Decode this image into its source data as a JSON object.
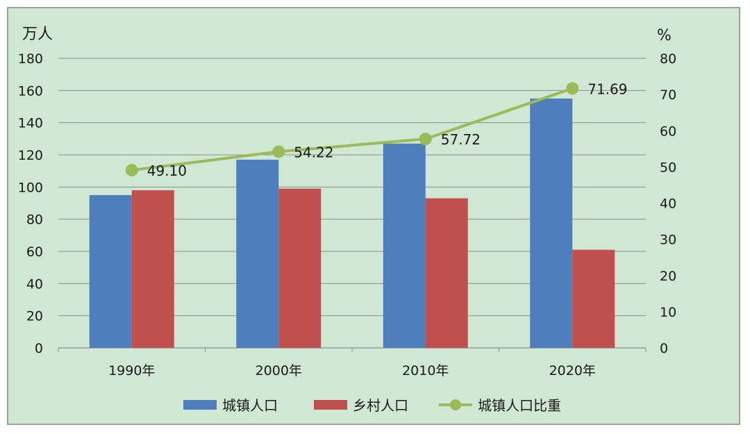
{
  "chart_data": {
    "type": "bar+line",
    "categories": [
      "1990年",
      "2000年",
      "2010年",
      "2020年"
    ],
    "left_axis": {
      "unit_label": "万人",
      "ylim": [
        0,
        180
      ],
      "ticks": [
        0,
        20,
        40,
        60,
        80,
        100,
        120,
        140,
        160,
        180
      ]
    },
    "right_axis": {
      "unit_label": "%",
      "ylim": [
        0,
        80
      ],
      "ticks": [
        0,
        10,
        20,
        30,
        40,
        50,
        60,
        70,
        80
      ]
    },
    "series": [
      {
        "name": "城镇人口",
        "kind": "bar",
        "axis": "left",
        "color": "#4f7ebd",
        "values": [
          95,
          117,
          127,
          155
        ]
      },
      {
        "name": "乡村人口",
        "kind": "bar",
        "axis": "left",
        "color": "#c0504d",
        "values": [
          98,
          99,
          93,
          61
        ]
      },
      {
        "name": "城镇人口比重",
        "kind": "line",
        "axis": "right",
        "color": "#9bbb59",
        "values": [
          49.1,
          54.22,
          57.72,
          71.69
        ],
        "labels": [
          "49.10",
          "54.22",
          "57.72",
          "71.69"
        ]
      }
    ],
    "grid": true,
    "legend_position": "bottom"
  }
}
